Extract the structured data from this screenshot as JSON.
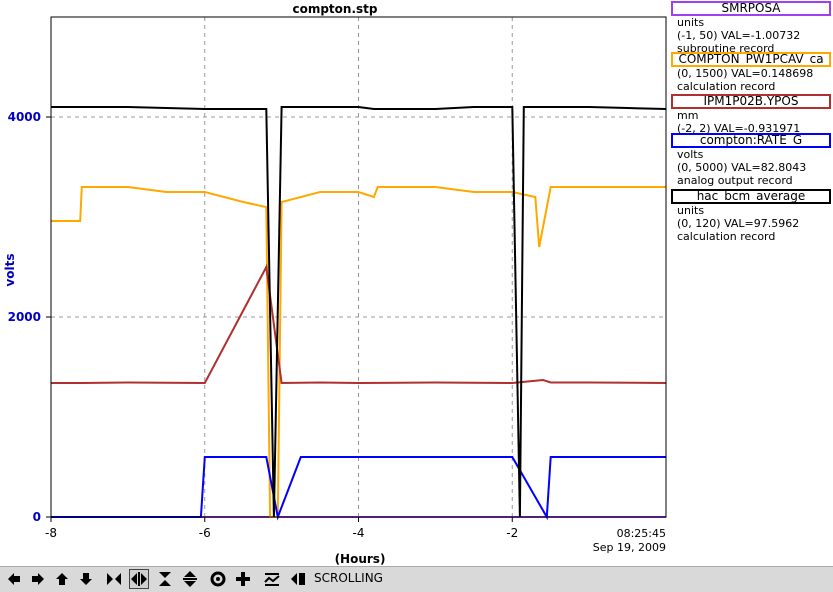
{
  "chart_data": {
    "type": "line",
    "title": "compton.stp",
    "ylabel": "volts",
    "xlabel": "(Hours)",
    "xlim": [
      -8,
      0
    ],
    "ylim": [
      0,
      5000
    ],
    "x_ticks": [
      "-8",
      "-6",
      "-4",
      "-2"
    ],
    "y_ticks": [
      "0",
      "2000",
      "4000"
    ],
    "time_label": "08:25:45",
    "date_label": "Sep 19, 2009",
    "grid": true,
    "series": [
      {
        "name": "SMRPOSA",
        "color": "#a040f0",
        "x": [
          -8.0,
          -0.0
        ],
        "y": [
          0,
          0
        ]
      },
      {
        "name": "COMPTON_PW1PCAV_ca",
        "color": "#ffa800",
        "x": [
          -8.0,
          -7.62,
          -7.6,
          -7.0,
          -6.5,
          -6.0,
          -5.5,
          -5.2,
          -5.15,
          -5.05,
          -5.0,
          -4.5,
          -4.0,
          -3.8,
          -3.75,
          -3.0,
          -2.5,
          -2.0,
          -1.7,
          -1.65,
          -1.5,
          -1.0,
          -0.5,
          0.0
        ],
        "y": [
          2960,
          2960,
          3300,
          3300,
          3250,
          3250,
          3150,
          3100,
          0,
          0,
          3150,
          3250,
          3250,
          3200,
          3300,
          3300,
          3250,
          3250,
          3200,
          2700,
          3300,
          3300,
          3300,
          3300
        ]
      },
      {
        "name": "IPM1P02B.YPOS",
        "color": "#b03030",
        "x": [
          -8.0,
          -7.6,
          -7.0,
          -6.0,
          -5.2,
          -5.0,
          -4.5,
          -4.0,
          -3.0,
          -2.0,
          -1.6,
          -1.5,
          -1.0,
          0.0
        ],
        "y": [
          1340,
          1340,
          1345,
          1340,
          2500,
          1340,
          1345,
          1340,
          1345,
          1340,
          1370,
          1345,
          1345,
          1340
        ]
      },
      {
        "name": "compton:RATE_G",
        "color": "#0000ff",
        "x": [
          -8.0,
          -6.05,
          -6.0,
          -5.2,
          -5.05,
          -4.75,
          -4.0,
          -3.8,
          -3.0,
          -2.0,
          -1.55,
          -1.5,
          -1.0,
          0.0
        ],
        "y": [
          0,
          0,
          600,
          600,
          0,
          600,
          600,
          600,
          600,
          600,
          0,
          600,
          600,
          600
        ]
      },
      {
        "name": "hac_bcm_average",
        "color": "#000000",
        "x": [
          -8.0,
          -7.5,
          -7.0,
          -6.0,
          -5.2,
          -5.1,
          -5.0,
          -4.5,
          -4.0,
          -3.8,
          -3.0,
          -2.5,
          -2.0,
          -1.9,
          -1.85,
          -1.5,
          -1.0,
          -0.5,
          0.0
        ],
        "y": [
          4100,
          4100,
          4100,
          4080,
          4080,
          0,
          4100,
          4100,
          4100,
          4080,
          4080,
          4100,
          4100,
          0,
          4100,
          4100,
          4100,
          4090,
          4080
        ]
      }
    ]
  },
  "legend": [
    {
      "title": "SMRPOSA",
      "color": "#a040f0",
      "line1": "units",
      "line2": "(-1, 50) VAL=-1.00732",
      "line3": "subroutine record"
    },
    {
      "title": "COMPTON_PW1PCAV_ca",
      "color": "#ffa800",
      "line1": "",
      "line2": "(0, 1500) VAL=0.148698",
      "line3": "calculation record"
    },
    {
      "title": "IPM1P02B.YPOS",
      "color": "#b03030",
      "line1": "mm",
      "line2": "(-2, 2) VAL=-0.931971",
      "line3": ""
    },
    {
      "title": "compton:RATE_G",
      "color": "#0000ff",
      "line1": "volts",
      "line2": "(0, 5000) VAL=82.8043",
      "line3": "analog output record"
    },
    {
      "title": "hac_bcm_average",
      "color": "#000000",
      "line1": "units",
      "line2": "(0, 120) VAL=97.5962",
      "line3": "calculation record"
    }
  ],
  "toolbar": {
    "buttons": [
      {
        "name": "scroll-left-button",
        "icon": "arrow-left-icon"
      },
      {
        "name": "scroll-right-button",
        "icon": "arrow-right-icon"
      },
      {
        "name": "scroll-up-button",
        "icon": "arrow-up-icon"
      },
      {
        "name": "scroll-down-button",
        "icon": "arrow-down-icon"
      },
      {
        "name": "zoom-in-x-button",
        "icon": "zoom-in-x-icon"
      },
      {
        "name": "zoom-out-x-button",
        "icon": "zoom-out-x-icon"
      },
      {
        "name": "zoom-in-y-button",
        "icon": "zoom-in-y-icon"
      },
      {
        "name": "zoom-out-y-button",
        "icon": "zoom-out-y-icon"
      },
      {
        "name": "zoom-in-button",
        "icon": "zoom-in-icon"
      },
      {
        "name": "zoom-out-button",
        "icon": "zoom-out-icon"
      },
      {
        "name": "autoscale-button",
        "icon": "autoscale-icon"
      },
      {
        "name": "scroll-mode-button",
        "icon": "scroll-mode-icon"
      }
    ],
    "mode_label": "SCROLLING"
  },
  "colors": {
    "axis_label": "#0000c0",
    "grid": "#999999"
  }
}
